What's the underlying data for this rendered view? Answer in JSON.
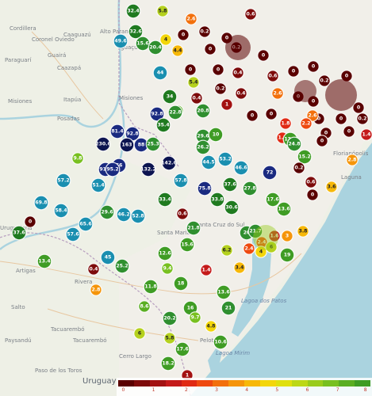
{
  "map_labels": {
    "places": [
      {
        "text": "Cordillera",
        "cls": "lbl"
      },
      {
        "text": "Coronel Oviedo",
        "cls": "lbl"
      },
      {
        "text": "Caaguazú",
        "cls": "lbl"
      },
      {
        "text": "Caazapá",
        "cls": "lbl"
      },
      {
        "text": "Guairá",
        "cls": "lbl"
      },
      {
        "text": "Paraguarí",
        "cls": "lbl"
      },
      {
        "text": "Misiones",
        "cls": "lbl"
      },
      {
        "text": "Itapúa",
        "cls": "lbl"
      },
      {
        "text": "Posadas",
        "cls": "lbl"
      },
      {
        "text": "Alto Paraná",
        "cls": "lbl"
      },
      {
        "text": "Iguaçu",
        "cls": "lbl"
      },
      {
        "text": "Misiones",
        "cls": "lbl"
      },
      {
        "text": "Santa Maria",
        "cls": "lbl"
      },
      {
        "text": "Santa Cruz do Sul",
        "cls": "lbl"
      },
      {
        "text": "Uruguaiana",
        "cls": "lbl"
      },
      {
        "text": "Artigas",
        "cls": "lbl"
      },
      {
        "text": "Rivera",
        "cls": "lbl"
      },
      {
        "text": "Salto",
        "cls": "lbl"
      },
      {
        "text": "Tacuarembó",
        "cls": "lbl"
      },
      {
        "text": "Tacuarembó",
        "cls": "lbl"
      },
      {
        "text": "Paysandú",
        "cls": "lbl"
      },
      {
        "text": "Paso de los Toros",
        "cls": "lbl"
      },
      {
        "text": "Cerro Largo",
        "cls": "lbl"
      },
      {
        "text": "Uruguay",
        "cls": "lbl lbl-country"
      },
      {
        "text": "Lagoa Mirim",
        "cls": "lbl lbl-sea"
      },
      {
        "text": "Lagoa dos Patos",
        "cls": "lbl lbl-sea"
      },
      {
        "text": "Laguna",
        "cls": "lbl"
      },
      {
        "text": "Florianópolis",
        "cls": "lbl"
      },
      {
        "text": "Pelotas",
        "cls": "lbl"
      }
    ]
  },
  "legend": {
    "ticks": [
      "0",
      "1",
      "2",
      "3",
      "4",
      "5",
      "6",
      "7",
      "8"
    ],
    "colors": [
      "#5a0000",
      "#7d0a0a",
      "#a31212",
      "#c41a1a",
      "#e02a14",
      "#ee4a10",
      "#f2700c",
      "#f5950a",
      "#f7b808",
      "#f3d60a",
      "#dfe00e",
      "#bcd816",
      "#99cc1c",
      "#78c020",
      "#5aae22",
      "#3f9c24"
    ]
  },
  "colors": {
    "water": "#aad3df",
    "land": "#eef0e6",
    "brazil": "#f1efe9",
    "border": "#b79ebf"
  },
  "markers": [
    {
      "v": "32.4",
      "c": "#1f7a1f"
    },
    {
      "v": "5.8",
      "c": "#b5d11e"
    },
    {
      "v": "0.6",
      "c": "#7d0a0a"
    },
    {
      "v": "2.6",
      "c": "#f2700c"
    },
    {
      "v": "32.6",
      "c": "#1f7a1f"
    },
    {
      "v": "0",
      "c": "#5a0000"
    },
    {
      "v": "0.2",
      "c": "#5a0000"
    },
    {
      "v": "0",
      "c": "#5a0000"
    },
    {
      "v": "49.6",
      "c": "#1a8fb0"
    },
    {
      "v": "15.6",
      "c": "#2f8f2f"
    },
    {
      "v": "20.4",
      "c": "#2f8f2f"
    },
    {
      "v": "4",
      "c": "#f3d60a"
    },
    {
      "v": "4.4",
      "c": "#f7b808"
    },
    {
      "v": "0",
      "c": "#5a0000"
    },
    {
      "v": "0.2",
      "c": "#5a0000"
    },
    {
      "v": "0",
      "c": "#5a0000"
    },
    {
      "v": "0",
      "c": "#5a0000"
    },
    {
      "v": "0",
      "c": "#5a0000"
    },
    {
      "v": "0.4",
      "c": "#7d0a0a"
    },
    {
      "v": "0.6",
      "c": "#7d0a0a"
    },
    {
      "v": "0",
      "c": "#5a0000"
    },
    {
      "v": "0",
      "c": "#5a0000"
    },
    {
      "v": "0.2",
      "c": "#5a0000"
    },
    {
      "v": "0",
      "c": "#5a0000"
    },
    {
      "v": "44",
      "c": "#1a8fb0"
    },
    {
      "v": "5.4",
      "c": "#b5d11e"
    },
    {
      "v": "0.2",
      "c": "#5a0000"
    },
    {
      "v": "0.4",
      "c": "#7d0a0a"
    },
    {
      "v": "2.6",
      "c": "#f2700c"
    },
    {
      "v": "0",
      "c": "#5a0000"
    },
    {
      "v": "0",
      "c": "#5a0000"
    },
    {
      "v": "0",
      "c": "#5a0000"
    },
    {
      "v": "34",
      "c": "#1f7a1f"
    },
    {
      "v": "8",
      "c": "#5aae22"
    },
    {
      "v": "0.4",
      "c": "#7d0a0a"
    },
    {
      "v": "1",
      "c": "#a31212"
    },
    {
      "v": "1.8",
      "c": "#e02a14"
    },
    {
      "v": "0",
      "c": "#5a0000"
    },
    {
      "v": "0",
      "c": "#5a0000"
    },
    {
      "v": "0.2",
      "c": "#5a0000"
    },
    {
      "v": "92.8",
      "c": "#1a2a80"
    },
    {
      "v": "22.8",
      "c": "#2f8f2f"
    },
    {
      "v": "20.8",
      "c": "#2f8f2f"
    },
    {
      "v": "2.6",
      "c": "#f2700c"
    },
    {
      "v": "0",
      "c": "#5a0000"
    },
    {
      "v": "0",
      "c": "#5a0000"
    },
    {
      "v": "2.2",
      "c": "#ee4a10"
    },
    {
      "v": "0",
      "c": "#5a0000"
    },
    {
      "v": "81.4",
      "c": "#1a2a80"
    },
    {
      "v": "92.8",
      "c": "#1a2a80"
    },
    {
      "v": "35.4",
      "c": "#1f7a1f"
    },
    {
      "v": "29.6",
      "c": "#2f8f2f"
    },
    {
      "v": "10",
      "c": "#3f9c24"
    },
    {
      "v": "1.8",
      "c": "#e02a14"
    },
    {
      "v": "0",
      "c": "#5a0000"
    },
    {
      "v": "1.4",
      "c": "#c41a1a"
    },
    {
      "v": "230.6",
      "c": "#0c1450"
    },
    {
      "v": "163",
      "c": "#0c1450"
    },
    {
      "v": "88",
      "c": "#1a2a80"
    },
    {
      "v": "25.3",
      "c": "#2f8f2f"
    },
    {
      "v": "26.2",
      "c": "#2f8f2f"
    },
    {
      "v": "13.6",
      "c": "#3f9c24"
    },
    {
      "v": "24.8",
      "c": "#2f8f2f"
    },
    {
      "v": "0",
      "c": "#5a0000"
    },
    {
      "v": "9.8",
      "c": "#78c020"
    },
    {
      "v": "66",
      "c": "#1a2a80"
    },
    {
      "v": "91.1",
      "c": "#1a2a80"
    },
    {
      "v": "95.2",
      "c": "#1a2a80"
    },
    {
      "v": "132.2",
      "c": "#0c1450"
    },
    {
      "v": "142.6",
      "c": "#0c1450"
    },
    {
      "v": "44.5",
      "c": "#1a8fb0"
    },
    {
      "v": "53.2",
      "c": "#1a8fb0"
    },
    {
      "v": "46.6",
      "c": "#1a8fb0"
    },
    {
      "v": "15.2",
      "c": "#3f9c24"
    },
    {
      "v": "0.2",
      "c": "#5a0000"
    },
    {
      "v": "2.8",
      "c": "#f5950a"
    },
    {
      "v": "57.2",
      "c": "#1a8fb0"
    },
    {
      "v": "51.4",
      "c": "#1a8fb0"
    },
    {
      "v": "57.8",
      "c": "#1a8fb0"
    },
    {
      "v": "75.8",
      "c": "#1a2a80"
    },
    {
      "v": "37.6",
      "c": "#1f7a1f"
    },
    {
      "v": "72",
      "c": "#1a2a80"
    },
    {
      "v": "0.6",
      "c": "#7d0a0a"
    },
    {
      "v": "3.6",
      "c": "#f7b808"
    },
    {
      "v": "69.8",
      "c": "#1a8fb0"
    },
    {
      "v": "58.4",
      "c": "#1a8fb0"
    },
    {
      "v": "29.6",
      "c": "#2f8f2f"
    },
    {
      "v": "46.2",
      "c": "#1a8fb0"
    },
    {
      "v": "52.8",
      "c": "#1a8fb0"
    },
    {
      "v": "33.4",
      "c": "#1f7a1f"
    },
    {
      "v": "33.8",
      "c": "#1f7a1f"
    },
    {
      "v": "30.6",
      "c": "#1f7a1f"
    },
    {
      "v": "27.8",
      "c": "#2f8f2f"
    },
    {
      "v": "17.6",
      "c": "#3f9c24"
    },
    {
      "v": "13.6",
      "c": "#3f9c24"
    },
    {
      "v": "0",
      "c": "#5a0000"
    },
    {
      "v": "0",
      "c": "#5a0000"
    },
    {
      "v": "65.6",
      "c": "#1a8fb0"
    },
    {
      "v": "57.6",
      "c": "#1a8fb0"
    },
    {
      "v": "37.6",
      "c": "#1f7a1f"
    },
    {
      "v": "0.6",
      "c": "#7d0a0a"
    },
    {
      "v": "21.8",
      "c": "#2f8f2f"
    },
    {
      "v": "20",
      "c": "#2f8f2f"
    },
    {
      "v": "21.7",
      "c": "#2f8f2f"
    },
    {
      "v": "2.4",
      "c": "#ee4a10"
    },
    {
      "v": "1.6",
      "c": "#c41a1a"
    },
    {
      "v": "3",
      "c": "#f5950a"
    },
    {
      "v": "3.8",
      "c": "#f7b808"
    },
    {
      "v": "13.4",
      "c": "#3f9c24"
    },
    {
      "v": "45",
      "c": "#1a8fb0"
    },
    {
      "v": "12.6",
      "c": "#3f9c24"
    },
    {
      "v": "15.6",
      "c": "#3f9c24"
    },
    {
      "v": "6.2",
      "c": "#b5d11e"
    },
    {
      "v": "2.4",
      "c": "#ee4a10"
    },
    {
      "v": "4",
      "c": "#f3d60a"
    },
    {
      "v": "6",
      "c": "#b5d11e"
    },
    {
      "v": "0.4",
      "c": "#7d0a0a"
    },
    {
      "v": "25.2",
      "c": "#2f8f2f"
    },
    {
      "v": "9.4",
      "c": "#78c020"
    },
    {
      "v": "1.4",
      "c": "#c41a1a"
    },
    {
      "v": "3.4",
      "c": "#f7b808"
    },
    {
      "v": "19",
      "c": "#3f9c24"
    },
    {
      "v": "11.8",
      "c": "#3f9c24"
    },
    {
      "v": "18",
      "c": "#3f9c24"
    },
    {
      "v": "13.6",
      "c": "#3f9c24"
    },
    {
      "v": "2.8",
      "c": "#f5950a"
    },
    {
      "v": "8.6",
      "c": "#5aae22"
    },
    {
      "v": "16",
      "c": "#3f9c24"
    },
    {
      "v": "21",
      "c": "#2f8f2f"
    },
    {
      "v": "20.2",
      "c": "#2f8f2f"
    },
    {
      "v": "9.7",
      "c": "#78c020"
    },
    {
      "v": "4.8",
      "c": "#f3d60a"
    },
    {
      "v": "6",
      "c": "#b5d11e"
    },
    {
      "v": "5.8",
      "c": "#b5d11e"
    },
    {
      "v": "10.6",
      "c": "#3f9c24"
    },
    {
      "v": "17.6",
      "c": "#3f9c24"
    },
    {
      "v": "18.2",
      "c": "#3f9c24"
    },
    {
      "v": "1",
      "c": "#a31212"
    }
  ]
}
